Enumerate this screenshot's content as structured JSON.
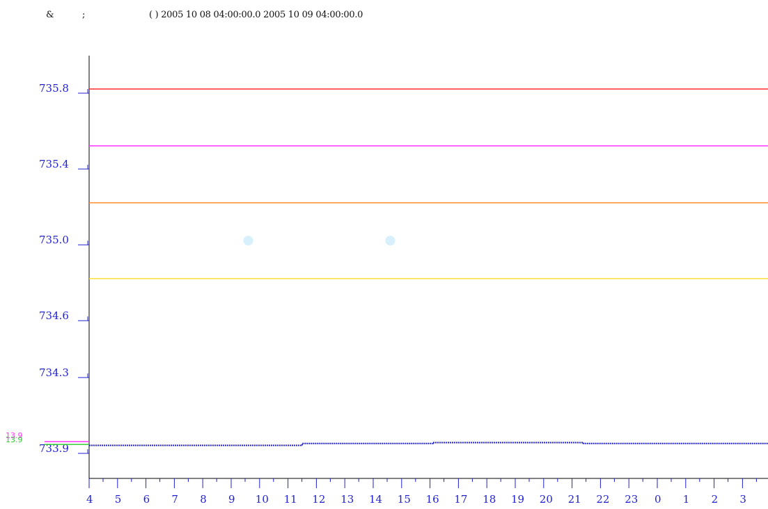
{
  "header": {
    "left_a": "&",
    "left_b": ";",
    "range_text": "( ) 2005 10 08 04:00:00.0   2005 10 09 04:00:00.0"
  },
  "chart_data": {
    "type": "line",
    "title": "",
    "xlabel": "",
    "ylabel": "",
    "x_ticks": [
      "4",
      "5",
      "6",
      "7",
      "8",
      "9",
      "10",
      "11",
      "12",
      "13",
      "14",
      "15",
      "16",
      "17",
      "18",
      "19",
      "20",
      "21",
      "22",
      "23",
      "0",
      "1",
      "2",
      "3"
    ],
    "y_ticks": [
      733.9,
      734.3,
      734.6,
      735.0,
      735.4,
      735.8
    ],
    "y_tick_labels": [
      "733.9",
      "734.3",
      "734.6",
      "735.0",
      "735.4",
      "735.8"
    ],
    "reference_lines": [
      {
        "value": 735.8,
        "color": "#ff2a2a"
      },
      {
        "value": 735.5,
        "color": "#ff33ff"
      },
      {
        "value": 735.2,
        "color": "#ff8c2a"
      },
      {
        "value": 734.8,
        "color": "#ffdd33"
      }
    ],
    "series": [
      {
        "color": "#1f1fd6",
        "style": "dotted",
        "points": [
          {
            "x": 4.0,
            "y": 733.92
          },
          {
            "x": 11.5,
            "y": 733.92
          },
          {
            "x": 11.5,
            "y": 733.93
          },
          {
            "x": 16.1,
            "y": 733.93
          },
          {
            "x": 16.1,
            "y": 733.935
          },
          {
            "x": 21.4,
            "y": 733.935
          },
          {
            "x": 21.4,
            "y": 733.93
          },
          {
            "x": 28.0,
            "y": 733.93
          }
        ]
      }
    ],
    "markers": [
      {
        "x": 9.6,
        "y": 735.0,
        "color": "#d7f0fb"
      },
      {
        "x": 14.6,
        "y": 735.0,
        "color": "#d7f0fb"
      }
    ],
    "side_labels": [
      {
        "text": "13.9",
        "color": "#ff33ff"
      },
      {
        "text": "13.9",
        "color": "#33cc33"
      }
    ],
    "side_lines": [
      {
        "y": 733.94,
        "color": "#ff33ff"
      },
      {
        "y": 733.925,
        "color": "#33cc33"
      }
    ]
  }
}
